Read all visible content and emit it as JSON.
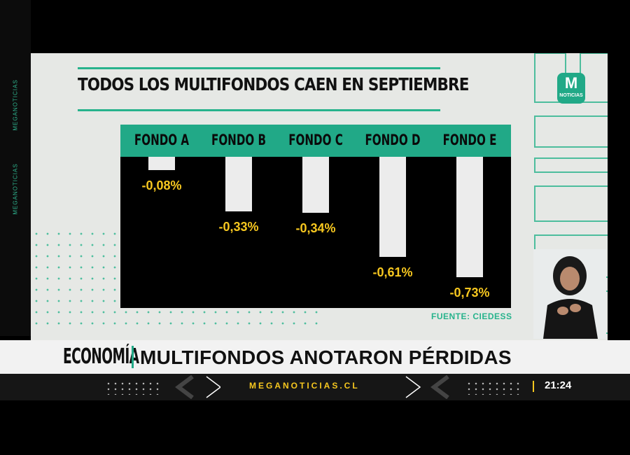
{
  "brand": {
    "side_label_1": "MEGANOTICIAS",
    "side_label_2": "MEGANOTICIAS",
    "logo_label": "NOTICIAS",
    "logo_letter": "M",
    "accent_color": "#21a987",
    "value_color": "#f6c71f"
  },
  "chart_data": {
    "type": "bar",
    "title": "TODOS LOS MULTIFONDOS CAEN EN SEPTIEMBRE",
    "categories": [
      "FONDO A",
      "FONDO B",
      "FONDO C",
      "FONDO D",
      "FONDO E"
    ],
    "values": [
      -0.08,
      -0.33,
      -0.34,
      -0.61,
      -0.73
    ],
    "value_labels": [
      "-0,08%",
      "-0,33%",
      "-0,34%",
      "-0,61%",
      "-0,73%"
    ],
    "ylim": [
      -0.8,
      0
    ],
    "source": "FUENTE: CIEDESS",
    "grid": false
  },
  "ticker": {
    "category": "ECONOMÍA",
    "headline": "MULTIFONDOS ANOTARON PÉRDIDAS"
  },
  "bottom_bar": {
    "site": "MEGANOTICIAS.CL",
    "time": "21:24"
  }
}
